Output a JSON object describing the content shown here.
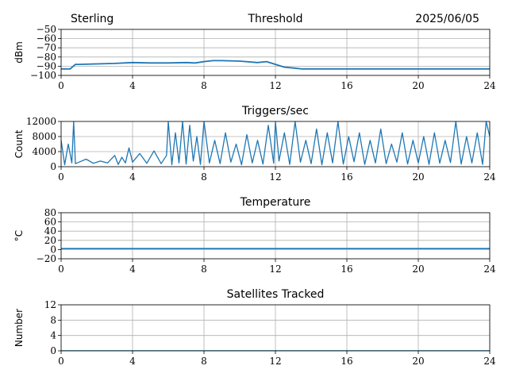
{
  "header": {
    "site": "Sterling",
    "date": "2025/06/05"
  },
  "colors": {
    "series": "#1f77b4",
    "grid": "#b0b0b0"
  },
  "chart_data": [
    {
      "id": "threshold",
      "type": "line",
      "title": "Threshold",
      "ylabel": "dBm",
      "xlim": [
        0,
        24
      ],
      "ylim": [
        -100,
        -50
      ],
      "xticks": [
        0,
        4,
        8,
        12,
        16,
        20,
        24
      ],
      "yticks": [
        -50,
        -60,
        -70,
        -80,
        -90,
        -100
      ],
      "ytick_labels": [
        "−50",
        "−60",
        "−70",
        "−80",
        "−90",
        "−100"
      ],
      "grid": true,
      "series": [
        {
          "x": [
            0,
            0.5,
            0.8,
            1.0,
            2,
            3,
            4,
            5,
            6,
            7,
            7.5,
            8,
            8.5,
            9,
            10,
            11,
            11.5,
            12,
            12.5,
            13,
            13.5,
            14,
            16,
            18,
            20,
            22,
            24
          ],
          "values": [
            -93,
            -93,
            -88,
            -88,
            -87.5,
            -87,
            -86,
            -86.5,
            -86.5,
            -86,
            -86.5,
            -85,
            -84,
            -84,
            -84.5,
            -86,
            -85,
            -88,
            -91,
            -92,
            -93,
            -93,
            -93,
            -93,
            -93,
            -93,
            -93
          ]
        }
      ]
    },
    {
      "id": "triggers",
      "type": "line",
      "title": "Triggers/sec",
      "ylabel": "Count",
      "xlim": [
        0,
        24
      ],
      "ylim": [
        0,
        12000
      ],
      "xticks": [
        0,
        4,
        8,
        12,
        16,
        20,
        24
      ],
      "yticks": [
        0,
        4000,
        8000,
        12000
      ],
      "ytick_labels": [
        "0",
        "4000",
        "8000",
        "12000"
      ],
      "grid": true,
      "series": [
        {
          "x": [
            0,
            0.2,
            0.4,
            0.6,
            0.7,
            0.8,
            1.0,
            1.4,
            1.8,
            2.2,
            2.6,
            3.0,
            3.2,
            3.4,
            3.6,
            3.8,
            4.0,
            4.4,
            4.8,
            5.2,
            5.6,
            5.9,
            6.0,
            6.2,
            6.4,
            6.6,
            6.8,
            7.0,
            7.2,
            7.4,
            7.6,
            7.8,
            8.0,
            8.3,
            8.6,
            8.9,
            9.2,
            9.5,
            9.8,
            10.1,
            10.4,
            10.7,
            11.0,
            11.3,
            11.6,
            11.9,
            12.0,
            12.2,
            12.5,
            12.8,
            13.1,
            13.4,
            13.7,
            14.0,
            14.3,
            14.6,
            14.9,
            15.2,
            15.5,
            15.8,
            16.1,
            16.4,
            16.7,
            17.0,
            17.3,
            17.6,
            17.9,
            18.2,
            18.5,
            18.8,
            19.1,
            19.4,
            19.7,
            20.0,
            20.3,
            20.6,
            20.9,
            21.2,
            21.5,
            21.8,
            22.1,
            22.4,
            22.7,
            23.0,
            23.3,
            23.6,
            23.8,
            24.0
          ],
          "values": [
            7000,
            500,
            6000,
            1000,
            12000,
            800,
            1200,
            2000,
            900,
            1500,
            1000,
            3000,
            600,
            2500,
            1000,
            5000,
            1200,
            3500,
            900,
            4200,
            800,
            3000,
            12000,
            500,
            9000,
            1000,
            12000,
            700,
            11000,
            1500,
            8000,
            600,
            12000,
            1000,
            7000,
            800,
            9000,
            1200,
            6000,
            500,
            8500,
            1000,
            7000,
            700,
            11000,
            900,
            12000,
            1500,
            9000,
            600,
            12000,
            1200,
            7000,
            800,
            10000,
            500,
            9000,
            1000,
            12000,
            700,
            8000,
            1300,
            9000,
            600,
            7000,
            1000,
            10000,
            800,
            6000,
            1200,
            9000,
            700,
            7000,
            1000,
            8000,
            600,
            9000,
            900,
            7000,
            1100,
            12000,
            700,
            8000,
            1000,
            9000,
            600,
            12000,
            8000
          ]
        }
      ]
    },
    {
      "id": "temperature",
      "type": "line",
      "title": "Temperature",
      "ylabel": "°C",
      "xlim": [
        0,
        24
      ],
      "ylim": [
        -20,
        80
      ],
      "xticks": [
        0,
        4,
        8,
        12,
        16,
        20,
        24
      ],
      "yticks": [
        80,
        60,
        40,
        20,
        0,
        -20
      ],
      "ytick_labels": [
        "80",
        "60",
        "40",
        "20",
        "0",
        "−20"
      ],
      "grid": true,
      "series": [
        {
          "x": [
            0,
            24
          ],
          "values": [
            2,
            2
          ]
        }
      ]
    },
    {
      "id": "satellites",
      "type": "line",
      "title": "Satellites Tracked",
      "ylabel": "Number",
      "xlim": [
        0,
        24
      ],
      "ylim": [
        0,
        12
      ],
      "xticks": [
        0,
        4,
        8,
        12,
        16,
        20,
        24
      ],
      "yticks": [
        0,
        4,
        8,
        12
      ],
      "ytick_labels": [
        "0",
        "4",
        "8",
        "12"
      ],
      "grid": true,
      "series": [
        {
          "x": [
            0,
            24
          ],
          "values": [
            0,
            0
          ]
        }
      ]
    }
  ]
}
